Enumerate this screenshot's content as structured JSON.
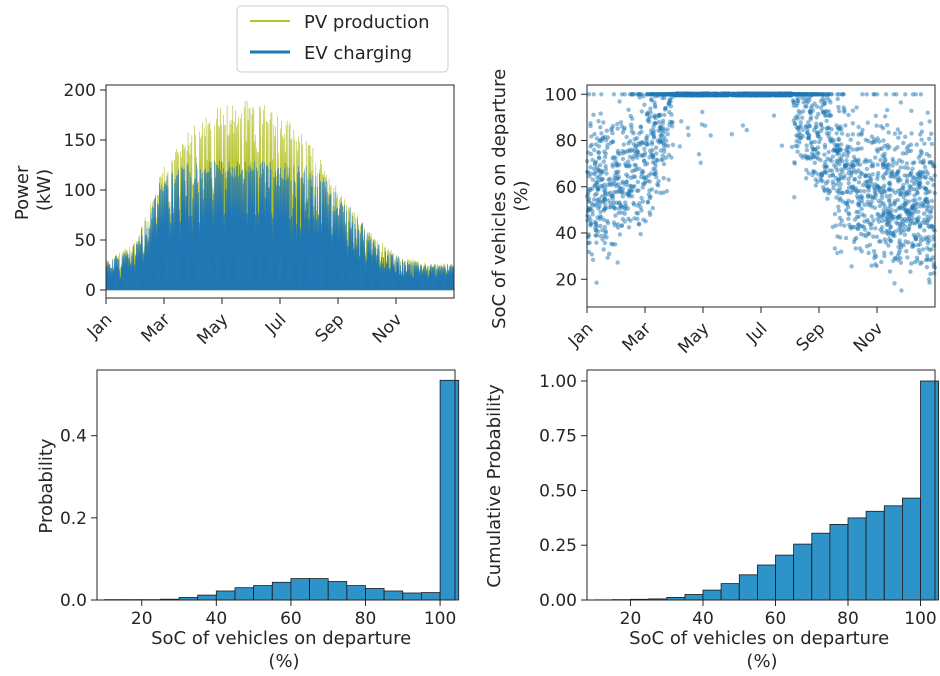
{
  "colors": {
    "pv": "#b5c22a",
    "ev": "#1f77b4",
    "hist": "#2e93c8",
    "scatter": "#1f77b4"
  },
  "legend": {
    "pv_label": "PV production",
    "ev_label": "EV charging",
    "placement": "top-center"
  },
  "chart_data": [
    {
      "id": "power",
      "type": "area",
      "title": "",
      "xlabel": "",
      "ylabel": "Power\n(kW)",
      "ylim": [
        -8,
        205
      ],
      "yticks": [
        0,
        50,
        100,
        150,
        200
      ],
      "xticks": [
        "Jan",
        "Mar",
        "May",
        "Jul",
        "Sep",
        "Nov"
      ],
      "xtick_month_index": [
        0,
        2,
        4,
        6,
        8,
        10
      ],
      "series": [
        {
          "name": "PV production",
          "monthly_peak": [
            29,
            48,
            125,
            165,
            187,
            190,
            180,
            150,
            102,
            62,
            36,
            27
          ]
        },
        {
          "name": "EV charging",
          "monthly_peak": [
            29,
            48,
            122,
            130,
            130,
            130,
            130,
            125,
            102,
            62,
            36,
            27
          ]
        }
      ]
    },
    {
      "id": "soc_scatter",
      "type": "scatter",
      "title": "",
      "xlabel": "",
      "ylabel": "SoC of vehicles on departure\n(%)",
      "ylim": [
        8,
        104
      ],
      "yticks": [
        20,
        40,
        60,
        80,
        100
      ],
      "xticks": [
        "Jan",
        "Mar",
        "May",
        "Jul",
        "Sep",
        "Nov"
      ],
      "xtick_month_index": [
        0,
        2,
        4,
        6,
        8,
        10
      ],
      "monthly_mean_soc": [
        58,
        63,
        72,
        100,
        100,
        100,
        100,
        100,
        85,
        62,
        58,
        55
      ]
    },
    {
      "id": "soc_hist",
      "type": "bar",
      "title": "",
      "xlabel": "SoC of vehicles on departure\n(%)",
      "ylabel": "Probability",
      "xlim": [
        8,
        104
      ],
      "ylim": [
        0,
        0.56
      ],
      "xticks": [
        20,
        40,
        60,
        80,
        100
      ],
      "yticks": [
        0.0,
        0.2,
        0.4
      ],
      "ytick_labels": [
        "0.0",
        "0.2",
        "0.4"
      ],
      "bin_edges": [
        10,
        15,
        20,
        25,
        30,
        35,
        40,
        45,
        50,
        55,
        60,
        65,
        70,
        75,
        80,
        85,
        90,
        95,
        100
      ],
      "values": [
        0.001,
        0.001,
        0.001,
        0.002,
        0.006,
        0.012,
        0.022,
        0.03,
        0.035,
        0.043,
        0.052,
        0.052,
        0.045,
        0.035,
        0.028,
        0.022,
        0.017,
        0.018,
        0.535
      ]
    },
    {
      "id": "soc_cdf",
      "type": "bar",
      "title": "",
      "xlabel": "SoC of vehicles on departure\n(%)",
      "ylabel": "Cumulative Probability",
      "xlim": [
        8,
        104
      ],
      "ylim": [
        0,
        1.05
      ],
      "xticks": [
        20,
        40,
        60,
        80,
        100
      ],
      "yticks": [
        0.0,
        0.25,
        0.5,
        0.75,
        1.0
      ],
      "ytick_labels": [
        "0.00",
        "0.25",
        "0.50",
        "0.75",
        "1.00"
      ],
      "bin_edges": [
        10,
        15,
        20,
        25,
        30,
        35,
        40,
        45,
        50,
        55,
        60,
        65,
        70,
        75,
        80,
        85,
        90,
        95,
        100
      ],
      "values": [
        0.001,
        0.002,
        0.003,
        0.005,
        0.012,
        0.025,
        0.045,
        0.075,
        0.115,
        0.16,
        0.205,
        0.255,
        0.305,
        0.345,
        0.375,
        0.405,
        0.43,
        0.465,
        1.0
      ]
    }
  ]
}
